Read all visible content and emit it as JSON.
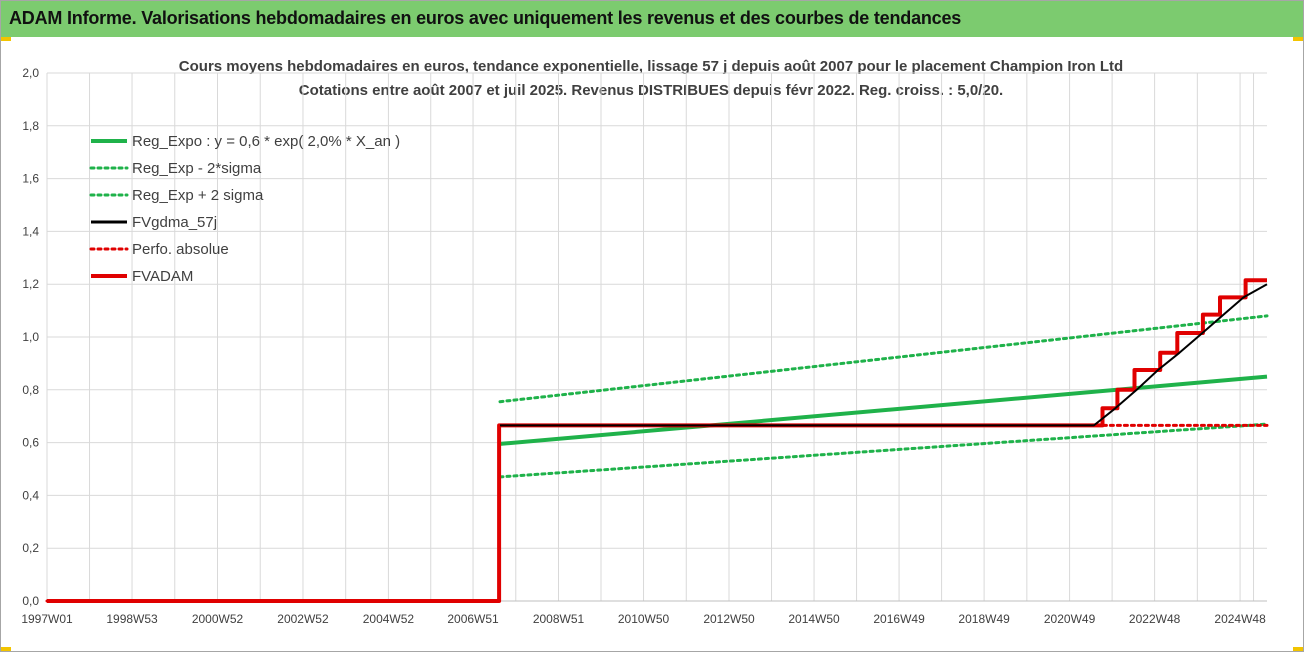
{
  "header": {
    "title": "ADAM Informe. Valorisations hebdomadaires en euros avec uniquement les revenus et des courbes de tendances"
  },
  "chart_data": {
    "type": "line",
    "title": "Cours moyens hebdomadaires en euros, tendance exponentielle, lissage 57 j depuis août 2007 pour le placement Champion Iron Ltd",
    "subtitle": "Cotations entre août 2007 et juil 2025. Revenus DISTRIBUES depuis févr 2022. Reg. croiss. : 5,0/20.",
    "xlabel": "",
    "ylabel": "",
    "xlim": [
      1997.0,
      2025.55
    ],
    "ylim": [
      0,
      2.0
    ],
    "yticks": [
      "0,0",
      "0,2",
      "0,4",
      "0,6",
      "0,8",
      "1,0",
      "1,2",
      "1,4",
      "1,6",
      "1,8",
      "2,0"
    ],
    "xticks": [
      {
        "label": "1997W01",
        "x": 1997.0
      },
      {
        "label": "1998W53",
        "x": 1998.99
      },
      {
        "label": "2000W52",
        "x": 2000.99
      },
      {
        "label": "2002W52",
        "x": 2002.99
      },
      {
        "label": "2004W52",
        "x": 2004.99
      },
      {
        "label": "2006W51",
        "x": 2006.97
      },
      {
        "label": "2008W51",
        "x": 2008.97
      },
      {
        "label": "2010W50",
        "x": 2010.96
      },
      {
        "label": "2012W50",
        "x": 2012.96
      },
      {
        "label": "2014W50",
        "x": 2014.95
      },
      {
        "label": "2016W49",
        "x": 2016.94
      },
      {
        "label": "2018W49",
        "x": 2018.93
      },
      {
        "label": "2020W49",
        "x": 2020.93
      },
      {
        "label": "2022W48",
        "x": 2022.92
      },
      {
        "label": "2024W48",
        "x": 2024.92
      }
    ],
    "grid": true,
    "legend_position": "top-left",
    "series": [
      {
        "name": "Reg_Expo : y = 0,6 * exp( 2,0% *  X_an )",
        "color": "#1fb24a",
        "style": "solid",
        "points": [
          [
            2007.6,
            0.595
          ],
          [
            2025.55,
            0.85
          ]
        ]
      },
      {
        "name": "Reg_Exp - 2*sigma",
        "color": "#1fb24a",
        "style": "dotted",
        "points": [
          [
            2007.6,
            0.47
          ],
          [
            2025.55,
            0.67
          ]
        ]
      },
      {
        "name": "Reg_Exp + 2 sigma",
        "color": "#1fb24a",
        "style": "dotted",
        "points": [
          [
            2007.6,
            0.755
          ],
          [
            2007.6,
            0.755
          ],
          [
            2025.55,
            1.08
          ]
        ]
      },
      {
        "name": "FVgdma_57j",
        "color": "#000000",
        "style": "solid",
        "points": [
          [
            2007.6,
            0.665
          ],
          [
            2021.5,
            0.665
          ],
          [
            2022.0,
            0.73
          ],
          [
            2022.5,
            0.8
          ],
          [
            2023.0,
            0.875
          ],
          [
            2023.5,
            0.94
          ],
          [
            2024.0,
            1.01
          ],
          [
            2024.5,
            1.08
          ],
          [
            2025.0,
            1.15
          ],
          [
            2025.55,
            1.2
          ]
        ]
      },
      {
        "name": "Perfo. absolue",
        "color": "#e00000",
        "style": "dotted",
        "points": [
          [
            1997.0,
            0.0
          ],
          [
            2007.58,
            0.0
          ],
          [
            2007.58,
            0.665
          ],
          [
            2025.55,
            0.665
          ]
        ]
      },
      {
        "name": "FVADAM",
        "color": "#e00000",
        "style": "solid",
        "points": [
          [
            1997.0,
            0.0
          ],
          [
            2007.58,
            0.0
          ],
          [
            2007.58,
            0.665
          ],
          [
            2021.7,
            0.665
          ],
          [
            2021.7,
            0.73
          ],
          [
            2022.05,
            0.73
          ],
          [
            2022.05,
            0.8
          ],
          [
            2022.45,
            0.8
          ],
          [
            2022.45,
            0.875
          ],
          [
            2023.05,
            0.875
          ],
          [
            2023.05,
            0.94
          ],
          [
            2023.45,
            0.94
          ],
          [
            2023.45,
            1.015
          ],
          [
            2024.05,
            1.015
          ],
          [
            2024.05,
            1.085
          ],
          [
            2024.45,
            1.085
          ],
          [
            2024.45,
            1.15
          ],
          [
            2025.05,
            1.15
          ],
          [
            2025.05,
            1.215
          ],
          [
            2025.55,
            1.215
          ]
        ]
      }
    ]
  }
}
